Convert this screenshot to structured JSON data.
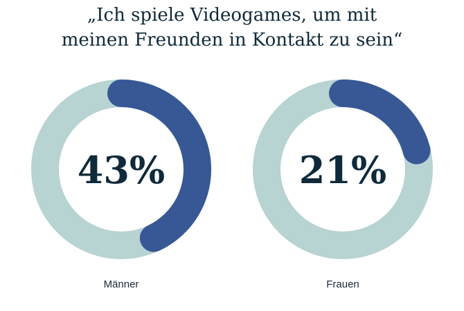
{
  "chart_data": {
    "type": "pie",
    "title_lines": [
      "„Ich spiele Videogames, um mit",
      "meinen Freunden in Kontakt zu sein“"
    ],
    "series": [
      {
        "name": "Männer",
        "value": 43,
        "label": "43%"
      },
      {
        "name": "Frauen",
        "value": 21,
        "label": "21%"
      }
    ],
    "colors": {
      "value": "#375895",
      "track": "#b7d3d2",
      "text": "#0f2a3a"
    }
  }
}
